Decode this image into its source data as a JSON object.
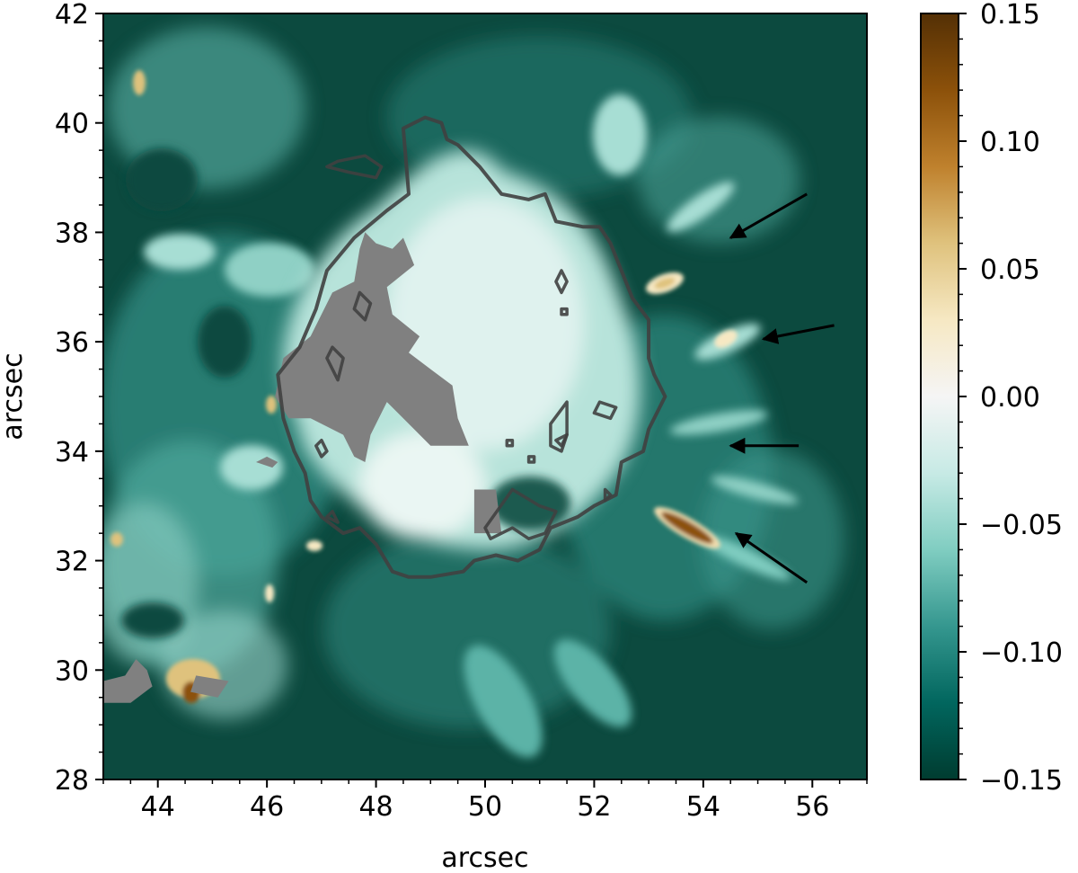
{
  "chart_data": {
    "type": "heatmap",
    "title": "",
    "xlabel": "arcsec",
    "ylabel": "arcsec",
    "xlim": [
      43,
      57
    ],
    "ylim": [
      28,
      42
    ],
    "x_ticks": [
      "44",
      "46",
      "48",
      "50",
      "52",
      "54",
      "56"
    ],
    "x_tick_values": [
      44,
      46,
      48,
      50,
      52,
      54,
      56
    ],
    "y_ticks": [
      "28",
      "30",
      "32",
      "34",
      "36",
      "38",
      "40",
      "42"
    ],
    "y_tick_values": [
      28,
      30,
      32,
      34,
      36,
      38,
      40,
      42
    ],
    "colorbar": {
      "range": [
        -0.15,
        0.15
      ],
      "ticks": [
        "0.15",
        "0.10",
        "0.05",
        "0.00",
        "−0.05",
        "−0.10",
        "−0.15"
      ],
      "tick_values": [
        0.15,
        0.1,
        0.05,
        0.0,
        -0.05,
        -0.1,
        -0.15
      ],
      "colormap": [
        "#003c30",
        "#01665e",
        "#35978f",
        "#80cdc1",
        "#c7eae5",
        "#f5f5f5",
        "#f6e8c3",
        "#dfc27d",
        "#bf812d",
        "#8c510a",
        "#543005"
      ]
    },
    "masked_color": "#808080",
    "contour_color": "#404040",
    "background_color": "#0c4a3f",
    "annotations": [
      {
        "type": "arrow",
        "tail": [
          55.9,
          38.7
        ],
        "head": [
          54.5,
          37.9
        ]
      },
      {
        "type": "arrow",
        "tail": [
          56.4,
          36.3
        ],
        "head": [
          55.1,
          36.05
        ]
      },
      {
        "type": "arrow",
        "tail": [
          55.75,
          34.1
        ],
        "head": [
          54.5,
          34.1
        ]
      },
      {
        "type": "arrow",
        "tail": [
          55.9,
          31.6
        ],
        "head": [
          54.6,
          32.5
        ]
      }
    ]
  }
}
